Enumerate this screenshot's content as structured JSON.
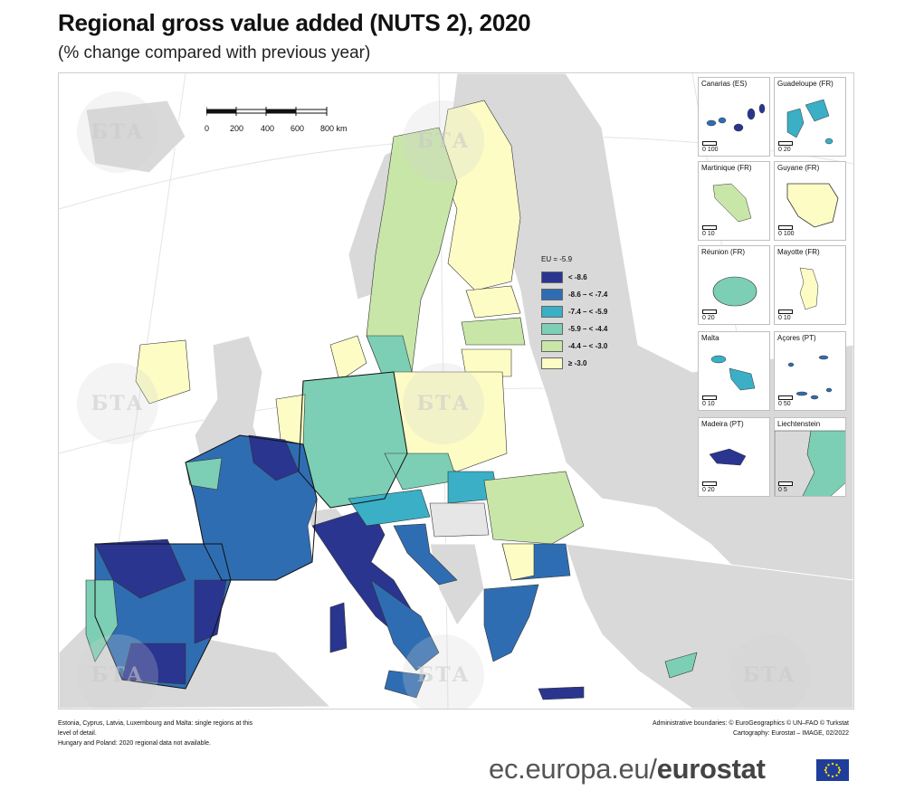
{
  "title": "Regional gross value added (NUTS 2), 2020",
  "subtitle": "(% change compared with previous year)",
  "legend": {
    "header": "EU = -5.9",
    "classes": [
      {
        "label": "< -8.6",
        "color": "#2a3590"
      },
      {
        "label": "-8.6 – < -7.4",
        "color": "#2f6db3"
      },
      {
        "label": "-7.4 – < -5.9",
        "color": "#3aafc6"
      },
      {
        "label": "-5.9 – < -4.4",
        "color": "#7ccfb4"
      },
      {
        "label": "-4.4 – < -3.0",
        "color": "#c8e6a8"
      },
      {
        "label": "≥ -3.0",
        "color": "#fdfcc4"
      }
    ]
  },
  "scale_bar": {
    "labels": [
      "0",
      "200",
      "400",
      "600",
      "800 km"
    ]
  },
  "insets": [
    {
      "name": "Canarias (ES)",
      "scale": "0   100"
    },
    {
      "name": "Guadeloupe (FR)",
      "scale": "0   20"
    },
    {
      "name": "Martinique (FR)",
      "scale": "0   10"
    },
    {
      "name": "Guyane (FR)",
      "scale": "0   100"
    },
    {
      "name": "Réunion (FR)",
      "scale": "0   20"
    },
    {
      "name": "Mayotte (FR)",
      "scale": "0   10"
    },
    {
      "name": "Malta",
      "scale": "0   10"
    },
    {
      "name": "Açores (PT)",
      "scale": "0   50"
    },
    {
      "name": "Madeira (PT)",
      "scale": "0   20"
    },
    {
      "name": "Liechtenstein",
      "scale": "0   5"
    }
  ],
  "notes": [
    "Estonia, Cyprus, Latvia, Luxembourg and Malta: single regions at this",
    "level of detail.",
    "Hungary and Poland: 2020 regional data not available."
  ],
  "credits": [
    "Administrative boundaries: © EuroGeographics © UN–FAO © Turkstat",
    "Cartography: Eurostat – IMAGE, 02/2022"
  ],
  "footer": {
    "url_prefix": "ec.europa.eu/",
    "brand": "eurostat"
  },
  "watermark_text": "БТА",
  "colors": {
    "non_eu": "#d9d9d9",
    "sea": "#ffffff",
    "no_data": "#e6e6e6"
  }
}
